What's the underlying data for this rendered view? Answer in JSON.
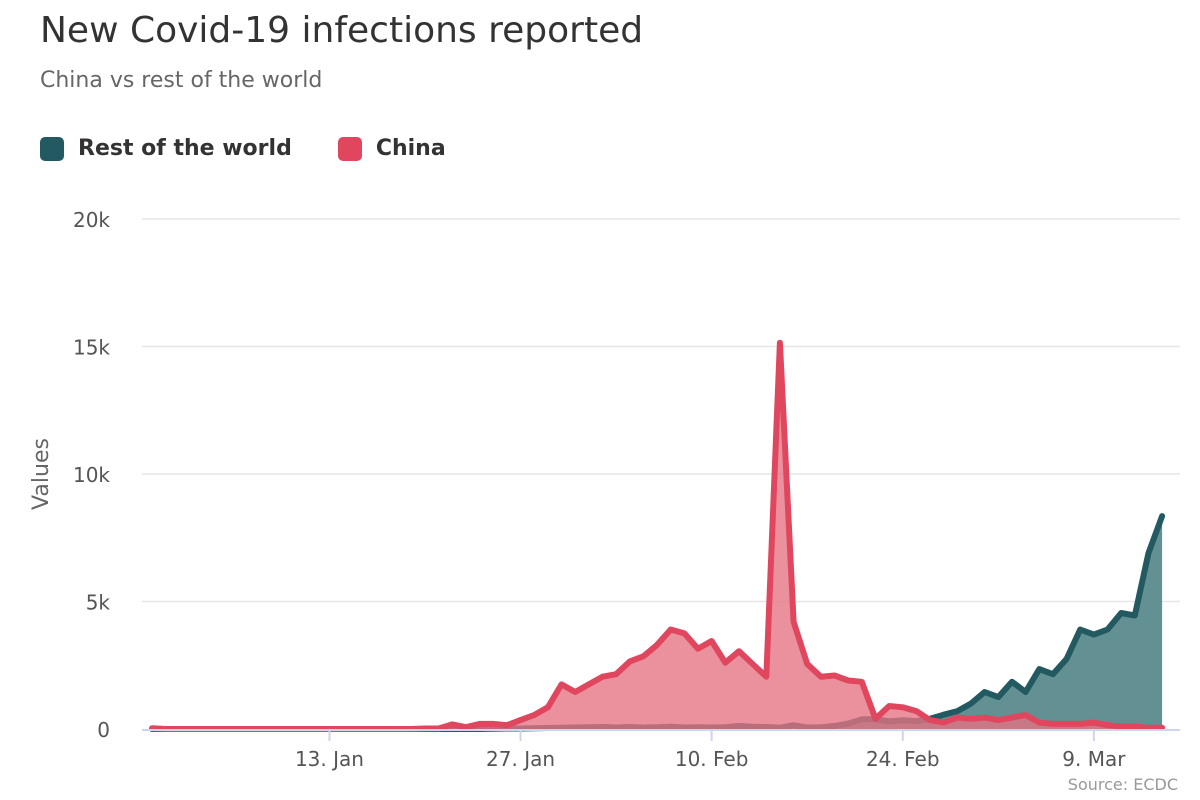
{
  "title": "New Covid-19 infections reported",
  "subtitle": "China vs rest of the world",
  "source": "Source: ECDC",
  "colors": {
    "rest_of_world": "#235a61",
    "rest_of_world_fill": "#5b8a8d",
    "china": "#e0475f",
    "china_fill": "#e67283",
    "grid": "#e6e6e6",
    "axis": "#ccd6eb"
  },
  "chart_data": {
    "type": "area",
    "title": "New Covid-19 infections reported",
    "subtitle": "China vs rest of the world",
    "ylabel": "Values",
    "ylim": [
      0,
      20000
    ],
    "yticks": [
      0,
      5000,
      10000,
      15000,
      20000
    ],
    "ytick_labels": [
      "0",
      "5k",
      "10k",
      "15k",
      "20k"
    ],
    "x_start": "31. Dec",
    "xticks": [
      {
        "index": 13,
        "label": "13. Jan"
      },
      {
        "index": 27,
        "label": "27. Jan"
      },
      {
        "index": 41,
        "label": "10. Feb"
      },
      {
        "index": 55,
        "label": "24. Feb"
      },
      {
        "index": 69,
        "label": "9. Mar"
      }
    ],
    "legend_position": "top-left",
    "grid": true,
    "series": [
      {
        "name": "Rest of the world",
        "values": [
          0,
          0,
          0,
          0,
          0,
          0,
          0,
          0,
          0,
          0,
          0,
          0,
          0,
          0,
          0,
          0,
          0,
          0,
          0,
          0,
          0,
          0,
          0,
          0,
          0,
          10,
          20,
          20,
          30,
          40,
          50,
          60,
          70,
          80,
          60,
          80,
          60,
          70,
          90,
          60,
          70,
          60,
          70,
          120,
          90,
          80,
          50,
          150,
          60,
          70,
          120,
          210,
          380,
          380,
          300,
          340,
          310,
          400,
          560,
          700,
          1000,
          1450,
          1250,
          1850,
          1450,
          2350,
          2150,
          2750,
          3900,
          3700,
          3900,
          4550,
          4450,
          6900,
          8350
        ],
        "color": "#235a61"
      },
      {
        "name": "China",
        "values": [
          30,
          0,
          0,
          0,
          0,
          0,
          0,
          0,
          0,
          0,
          0,
          0,
          0,
          0,
          0,
          0,
          0,
          0,
          0,
          0,
          20,
          20,
          180,
          70,
          200,
          200,
          150,
          350,
          550,
          850,
          1750,
          1450,
          1750,
          2050,
          2150,
          2650,
          2850,
          3300,
          3900,
          3750,
          3150,
          3450,
          2600,
          3050,
          2550,
          2050,
          15150,
          4200,
          2550,
          2050,
          2100,
          1900,
          1850,
          400,
          900,
          850,
          700,
          350,
          250,
          450,
          400,
          450,
          350,
          450,
          550,
          250,
          200,
          200,
          200,
          250,
          150,
          100,
          100,
          50,
          50
        ],
        "color": "#e0475f"
      }
    ]
  }
}
